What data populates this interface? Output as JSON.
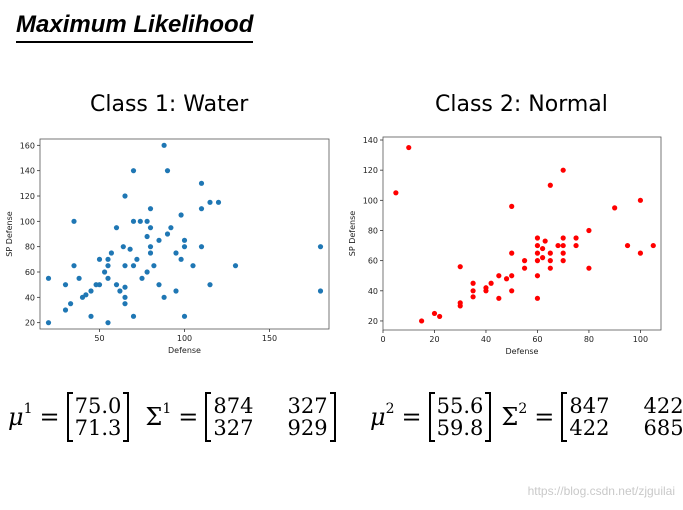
{
  "slide_title": "Maximum Likelihood",
  "watermark": "https://blog.csdn.net/zjguilai",
  "formulas": {
    "class1": {
      "mu_symbol": "μ",
      "sigma_symbol": "Σ",
      "superscript": "1",
      "equals": "=",
      "mu": [
        "75.0",
        "71.3"
      ],
      "sigma": [
        "874",
        "327",
        "327",
        "929"
      ]
    },
    "class2": {
      "mu_symbol": "μ",
      "sigma_symbol": "Σ",
      "superscript": "2",
      "equals": "=",
      "mu": [
        "55.6",
        "59.8"
      ],
      "sigma": [
        "847",
        "422",
        "422",
        "685"
      ]
    }
  },
  "chart_data": [
    {
      "type": "scatter",
      "title": "Class 1: Water",
      "xlabel": "Defense",
      "ylabel": "SP Defense",
      "xlim": [
        15,
        185
      ],
      "ylim": [
        15,
        165
      ],
      "xticks": [
        50,
        100,
        150
      ],
      "yticks": [
        20,
        40,
        60,
        80,
        100,
        120,
        140,
        160
      ],
      "color": "#1f77b4",
      "points": [
        [
          20,
          20
        ],
        [
          20,
          55
        ],
        [
          30,
          30
        ],
        [
          30,
          50
        ],
        [
          33,
          35
        ],
        [
          35,
          100
        ],
        [
          35,
          65
        ],
        [
          38,
          55
        ],
        [
          40,
          40
        ],
        [
          42,
          42
        ],
        [
          45,
          25
        ],
        [
          45,
          45
        ],
        [
          48,
          50
        ],
        [
          50,
          70
        ],
        [
          50,
          50
        ],
        [
          53,
          60
        ],
        [
          55,
          20
        ],
        [
          55,
          55
        ],
        [
          55,
          65
        ],
        [
          55,
          70
        ],
        [
          57,
          75
        ],
        [
          60,
          50
        ],
        [
          60,
          95
        ],
        [
          62,
          45
        ],
        [
          64,
          80
        ],
        [
          65,
          40
        ],
        [
          65,
          35
        ],
        [
          65,
          48
        ],
        [
          65,
          65
        ],
        [
          65,
          120
        ],
        [
          68,
          78
        ],
        [
          70,
          25
        ],
        [
          70,
          100
        ],
        [
          70,
          140
        ],
        [
          70,
          65
        ],
        [
          72,
          70
        ],
        [
          74,
          100
        ],
        [
          75,
          55
        ],
        [
          78,
          100
        ],
        [
          78,
          88
        ],
        [
          78,
          60
        ],
        [
          80,
          75
        ],
        [
          80,
          80
        ],
        [
          80,
          95
        ],
        [
          80,
          110
        ],
        [
          82,
          65
        ],
        [
          85,
          50
        ],
        [
          85,
          85
        ],
        [
          88,
          40
        ],
        [
          88,
          160
        ],
        [
          90,
          90
        ],
        [
          90,
          140
        ],
        [
          92,
          95
        ],
        [
          95,
          45
        ],
        [
          95,
          75
        ],
        [
          98,
          105
        ],
        [
          98,
          70
        ],
        [
          100,
          80
        ],
        [
          100,
          25
        ],
        [
          100,
          85
        ],
        [
          105,
          65
        ],
        [
          110,
          130
        ],
        [
          110,
          110
        ],
        [
          110,
          80
        ],
        [
          115,
          115
        ],
        [
          115,
          50
        ],
        [
          120,
          115
        ],
        [
          130,
          65
        ],
        [
          180,
          80
        ],
        [
          180,
          45
        ]
      ]
    },
    {
      "type": "scatter",
      "title": "Class 2: Normal",
      "xlabel": "Defense",
      "ylabel": "SP Defense",
      "xlim": [
        0,
        108
      ],
      "ylim": [
        14,
        142
      ],
      "xticks": [
        0,
        20,
        40,
        60,
        80,
        100
      ],
      "yticks": [
        20,
        40,
        60,
        80,
        100,
        120,
        140
      ],
      "color": "#ff0000",
      "points": [
        [
          5,
          105
        ],
        [
          10,
          135
        ],
        [
          15,
          20
        ],
        [
          20,
          25
        ],
        [
          22,
          23
        ],
        [
          30,
          30
        ],
        [
          30,
          32
        ],
        [
          30,
          56
        ],
        [
          35,
          45
        ],
        [
          35,
          40
        ],
        [
          35,
          36
        ],
        [
          40,
          40
        ],
        [
          40,
          42
        ],
        [
          42,
          45
        ],
        [
          45,
          50
        ],
        [
          45,
          35
        ],
        [
          48,
          48
        ],
        [
          50,
          50
        ],
        [
          50,
          65
        ],
        [
          50,
          40
        ],
        [
          50,
          96
        ],
        [
          55,
          60
        ],
        [
          55,
          55
        ],
        [
          60,
          60
        ],
        [
          60,
          65
        ],
        [
          60,
          70
        ],
        [
          60,
          75
        ],
        [
          60,
          50
        ],
        [
          60,
          35
        ],
        [
          62,
          62
        ],
        [
          62,
          68
        ],
        [
          63,
          73
        ],
        [
          65,
          55
        ],
        [
          65,
          65
        ],
        [
          65,
          60
        ],
        [
          65,
          110
        ],
        [
          68,
          70
        ],
        [
          70,
          60
        ],
        [
          70,
          65
        ],
        [
          70,
          70
        ],
        [
          70,
          75
        ],
        [
          70,
          120
        ],
        [
          75,
          75
        ],
        [
          75,
          70
        ],
        [
          80,
          80
        ],
        [
          80,
          55
        ],
        [
          90,
          95
        ],
        [
          95,
          70
        ],
        [
          100,
          65
        ],
        [
          100,
          100
        ],
        [
          105,
          70
        ]
      ]
    }
  ]
}
